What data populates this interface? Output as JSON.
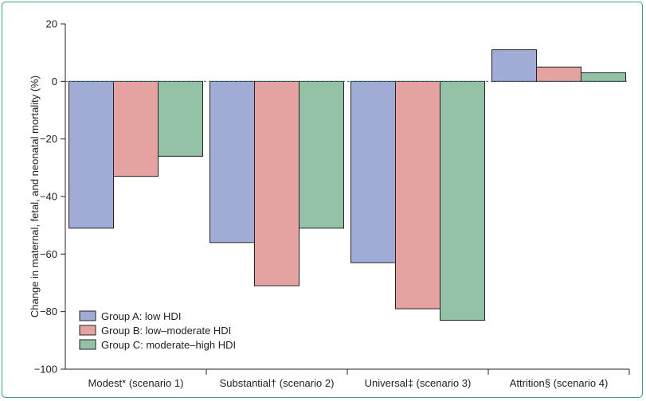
{
  "chart_data": {
    "type": "bar",
    "ylabel": "Change in maternal, fetal, and neonatal mortality (%)",
    "ylim": [
      -100,
      20
    ],
    "yticks": [
      20,
      0,
      -20,
      -40,
      -60,
      -80,
      -100
    ],
    "ytick_labels": [
      "20",
      "0",
      "−20",
      "−40",
      "−60",
      "−80",
      "−100"
    ],
    "categories": [
      "Modest* (scenario 1)",
      "Substantial† (scenario 2)",
      "Universal‡ (scenario 3)",
      "Attrition§ (scenario 4)"
    ],
    "series": [
      {
        "name": "Group A: low HDI",
        "color": "#a0acd6",
        "values": [
          -51,
          -56,
          -63,
          11
        ]
      },
      {
        "name": "Group B: low–moderate HDI",
        "color": "#e4a3a0",
        "values": [
          -33,
          -71,
          -79,
          5
        ]
      },
      {
        "name": "Group C: moderate–high HDI",
        "color": "#93c2a7",
        "values": [
          -26,
          -51,
          -83,
          3
        ]
      }
    ],
    "zero_line": "dashed",
    "legend_position": "bottom-left",
    "frame_color": "#3a9c83"
  }
}
